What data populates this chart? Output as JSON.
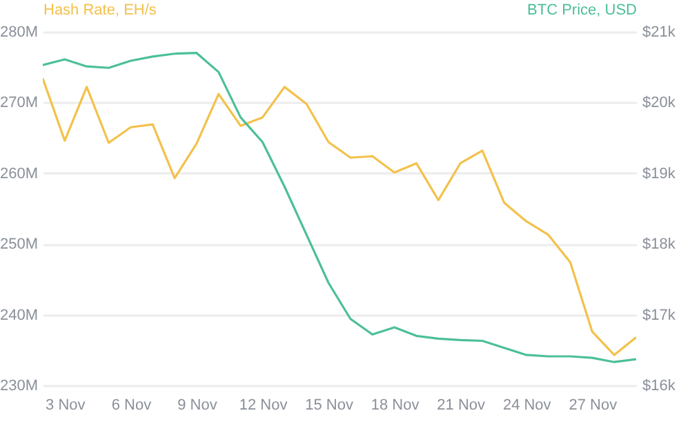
{
  "chart_data": {
    "type": "line",
    "ylabel": "Hash Rate, EH/s",
    "y2label": "BTC Price, USD",
    "grid": "y",
    "x": [
      "--11-02",
      "--11-03",
      "--11-04",
      "--11-05",
      "--11-06",
      "--11-07",
      "--11-08",
      "--11-09",
      "--11-10",
      "--11-11",
      "--11-12",
      "--11-13",
      "--11-14",
      "--11-15",
      "--11-16",
      "--11-17",
      "--11-18",
      "--11-19",
      "--11-20",
      "--11-21",
      "--11-22",
      "--11-23",
      "--11-24",
      "--11-25",
      "--11-26",
      "--11-27",
      "--11-28",
      "--11-29"
    ],
    "xlim": [
      "--11-02",
      "--11-29"
    ],
    "xticks": [
      {
        "value": "--11-03",
        "label": "3 Nov"
      },
      {
        "value": "--11-06",
        "label": "6 Nov"
      },
      {
        "value": "--11-09",
        "label": "9 Nov"
      },
      {
        "value": "--11-12",
        "label": "12 Nov"
      },
      {
        "value": "--11-15",
        "label": "15 Nov"
      },
      {
        "value": "--11-18",
        "label": "18 Nov"
      },
      {
        "value": "--11-21",
        "label": "21 Nov"
      },
      {
        "value": "--11-24",
        "label": "24 Nov"
      },
      {
        "value": "--11-27",
        "label": "27 Nov"
      }
    ],
    "ylim": [
      230000000,
      280000000
    ],
    "yticks": [
      {
        "value": 230000000,
        "label": "230M"
      },
      {
        "value": 240000000,
        "label": "240M"
      },
      {
        "value": 250000000,
        "label": "250M"
      },
      {
        "value": 260000000,
        "label": "260M"
      },
      {
        "value": 270000000,
        "label": "270M"
      },
      {
        "value": 280000000,
        "label": "280M"
      }
    ],
    "y2lim": [
      16000,
      21000
    ],
    "y2ticks": [
      {
        "value": 16000,
        "label": "$16k"
      },
      {
        "value": 17000,
        "label": "$17k"
      },
      {
        "value": 18000,
        "label": "$18k"
      },
      {
        "value": 19000,
        "label": "$19k"
      },
      {
        "value": 20000,
        "label": "$20k"
      },
      {
        "value": 21000,
        "label": "$21k"
      }
    ],
    "series": [
      {
        "color": "#f3c14b",
        "values": [
          273400000,
          264600000,
          272200000,
          264300000,
          266500000,
          266900000,
          259300000,
          264200000,
          271200000,
          266700000,
          267900000,
          272200000,
          269800000,
          264400000,
          262200000,
          262400000,
          260100000,
          261400000,
          256200000,
          261400000,
          263200000,
          255800000,
          253200000,
          251300000,
          247400000,
          237600000,
          234300000,
          236800000
        ]
      },
      {
        "color": "#4cbf97",
        "axis": "y2",
        "values": [
          20530,
          20610,
          20510,
          20490,
          20590,
          20650,
          20690,
          20700,
          20430,
          19790,
          19440,
          18810,
          18130,
          17450,
          16940,
          16720,
          16820,
          16700,
          16660,
          16640,
          16630,
          16530,
          16430,
          16410,
          16410,
          16390,
          16330,
          16370
        ]
      }
    ]
  }
}
